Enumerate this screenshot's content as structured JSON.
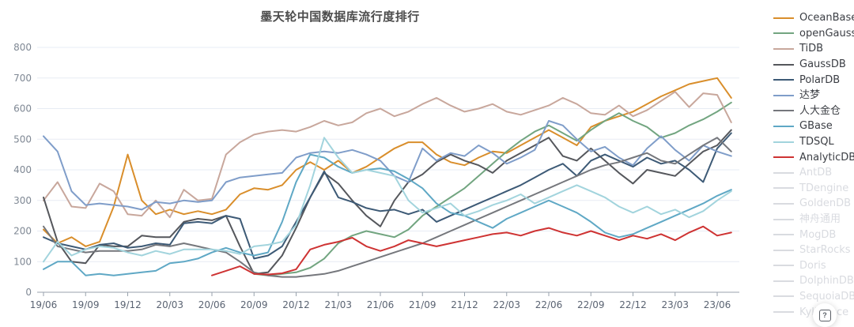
{
  "title": "墨天轮中国数据库流行度排行",
  "help_button": {
    "icon": "question-icon",
    "glyph": "?"
  },
  "colors": {
    "background": "#ffffff",
    "title": "#4c4c4c",
    "grid": "#e7ecf4",
    "axis_line": "#98a2ad",
    "y_label": "#7f8894",
    "x_label": "#5a6372",
    "disabled": "#d9dbe0"
  },
  "legend": {
    "items": [
      {
        "label": "OceanBase",
        "color": "#d98e2b",
        "active": true
      },
      {
        "label": "openGauss",
        "color": "#72a580",
        "active": true
      },
      {
        "label": "TiDB",
        "color": "#c8a79c",
        "active": true
      },
      {
        "label": "GaussDB",
        "color": "#55575c",
        "active": true
      },
      {
        "label": "PolarDB",
        "color": "#3d5a76",
        "active": true
      },
      {
        "label": "达梦",
        "color": "#7f9dc9",
        "active": true
      },
      {
        "label": "人大金仓",
        "color": "#75777c",
        "active": true
      },
      {
        "label": "GBase",
        "color": "#5fa8c5",
        "active": true
      },
      {
        "label": "TDSQL",
        "color": "#a2d4dd",
        "active": true
      },
      {
        "label": "AnalyticDB",
        "color": "#ce3333",
        "active": true
      },
      {
        "label": "AntDB",
        "color": "#d9dbe0",
        "active": false
      },
      {
        "label": "TDengine",
        "color": "#d9dbe0",
        "active": false
      },
      {
        "label": "GoldenDB",
        "color": "#d9dbe0",
        "active": false
      },
      {
        "label": "神舟通用",
        "color": "#d9dbe0",
        "active": false
      },
      {
        "label": "MogDB",
        "color": "#d9dbe0",
        "active": false
      },
      {
        "label": "StarRocks",
        "color": "#d9dbe0",
        "active": false
      },
      {
        "label": "Doris",
        "color": "#d9dbe0",
        "active": false
      },
      {
        "label": "DolphinDB",
        "color": "#d9dbe0",
        "active": false
      },
      {
        "label": "SequoiaDB",
        "color": "#d9dbe0",
        "active": false
      },
      {
        "label": "Kyligence",
        "color": "#d9dbe0",
        "active": false
      }
    ]
  },
  "chart_data": {
    "type": "line",
    "title": "墨天轮中国数据库流行度排行",
    "x_start": "19/06",
    "x_interval": "monthly",
    "points_per_series": 50,
    "x_tick_labels": [
      "19/06",
      "19/09",
      "19/12",
      "20/03",
      "20/06",
      "20/09",
      "20/12",
      "21/03",
      "21/06",
      "21/09",
      "21/12",
      "22/03",
      "22/06",
      "22/09",
      "22/12",
      "23/03",
      "23/06"
    ],
    "tick_every_n_points": 3,
    "y_ticks": [
      0,
      100,
      200,
      300,
      400,
      500,
      600,
      700,
      800
    ],
    "ylim": [
      0,
      800
    ],
    "grid": true,
    "legend_position": "right",
    "series": [
      {
        "name": "OceanBase",
        "color": "#d98e2b",
        "values": [
          205,
          160,
          180,
          150,
          165,
          280,
          450,
          300,
          255,
          270,
          255,
          265,
          255,
          270,
          320,
          340,
          335,
          350,
          400,
          425,
          400,
          430,
          390,
          410,
          440,
          470,
          490,
          490,
          450,
          425,
          415,
          440,
          460,
          455,
          480,
          505,
          530,
          505,
          480,
          540,
          560,
          575,
          590,
          615,
          640,
          660,
          680,
          690,
          700,
          635
        ]
      },
      {
        "name": "openGauss",
        "color": "#72a580",
        "values": [
          null,
          null,
          null,
          null,
          null,
          null,
          null,
          null,
          null,
          null,
          null,
          null,
          null,
          null,
          null,
          60,
          55,
          60,
          65,
          80,
          110,
          160,
          185,
          200,
          190,
          180,
          205,
          250,
          280,
          310,
          340,
          380,
          420,
          460,
          495,
          525,
          545,
          520,
          495,
          530,
          560,
          585,
          560,
          540,
          505,
          520,
          545,
          565,
          590,
          620
        ]
      },
      {
        "name": "TiDB",
        "color": "#c8a79c",
        "values": [
          300,
          360,
          280,
          275,
          355,
          330,
          255,
          250,
          300,
          245,
          335,
          300,
          305,
          450,
          490,
          515,
          525,
          530,
          525,
          540,
          560,
          545,
          555,
          585,
          600,
          575,
          590,
          615,
          635,
          610,
          590,
          600,
          615,
          590,
          580,
          595,
          610,
          635,
          615,
          585,
          580,
          610,
          575,
          595,
          625,
          655,
          605,
          650,
          645,
          555
        ]
      },
      {
        "name": "GaussDB",
        "color": "#55575c",
        "values": [
          310,
          165,
          100,
          95,
          155,
          150,
          150,
          185,
          180,
          180,
          230,
          240,
          235,
          250,
          150,
          60,
          65,
          120,
          210,
          310,
          390,
          355,
          300,
          250,
          215,
          300,
          360,
          385,
          425,
          450,
          430,
          415,
          390,
          430,
          455,
          480,
          505,
          445,
          430,
          470,
          430,
          390,
          355,
          400,
          390,
          380,
          420,
          460,
          480,
          530
        ]
      },
      {
        "name": "PolarDB",
        "color": "#3d5a76",
        "values": [
          180,
          160,
          150,
          140,
          155,
          160,
          145,
          150,
          160,
          155,
          225,
          230,
          225,
          250,
          240,
          110,
          120,
          150,
          230,
          310,
          395,
          310,
          295,
          275,
          265,
          270,
          255,
          270,
          230,
          250,
          270,
          290,
          310,
          330,
          350,
          375,
          400,
          420,
          380,
          430,
          450,
          430,
          410,
          440,
          420,
          430,
          400,
          360,
          470,
          520
        ]
      },
      {
        "name": "达梦",
        "color": "#7f9dc9",
        "values": [
          510,
          460,
          330,
          285,
          290,
          285,
          280,
          270,
          295,
          290,
          300,
          295,
          300,
          360,
          375,
          380,
          385,
          390,
          440,
          455,
          460,
          455,
          465,
          450,
          430,
          380,
          360,
          470,
          430,
          455,
          445,
          480,
          455,
          420,
          440,
          465,
          560,
          545,
          500,
          460,
          475,
          440,
          415,
          470,
          510,
          465,
          430,
          480,
          460,
          445
        ]
      },
      {
        "name": "人大金仓",
        "color": "#75777c",
        "values": [
          215,
          150,
          140,
          130,
          135,
          135,
          135,
          140,
          155,
          150,
          160,
          150,
          140,
          130,
          100,
          65,
          55,
          50,
          50,
          55,
          60,
          70,
          85,
          100,
          115,
          130,
          145,
          160,
          180,
          200,
          220,
          240,
          260,
          280,
          300,
          320,
          340,
          360,
          380,
          400,
          415,
          425,
          440,
          455,
          430,
          420,
          450,
          480,
          505,
          460
        ]
      },
      {
        "name": "GBase",
        "color": "#5fa8c5",
        "values": [
          75,
          100,
          100,
          55,
          60,
          55,
          60,
          65,
          70,
          95,
          100,
          110,
          130,
          145,
          130,
          120,
          130,
          230,
          360,
          450,
          440,
          410,
          390,
          400,
          405,
          395,
          370,
          340,
          290,
          260,
          250,
          230,
          210,
          240,
          260,
          280,
          300,
          280,
          260,
          230,
          195,
          180,
          190,
          210,
          230,
          250,
          270,
          290,
          315,
          335
        ]
      },
      {
        "name": "TDSQL",
        "color": "#a2d4dd",
        "values": [
          100,
          165,
          120,
          140,
          150,
          145,
          130,
          120,
          135,
          125,
          140,
          140,
          140,
          135,
          125,
          150,
          155,
          165,
          220,
          350,
          505,
          440,
          390,
          400,
          390,
          380,
          300,
          260,
          275,
          290,
          250,
          265,
          285,
          300,
          320,
          290,
          310,
          330,
          350,
          330,
          310,
          280,
          260,
          280,
          255,
          270,
          245,
          265,
          300,
          330
        ]
      },
      {
        "name": "AnalyticDB",
        "color": "#ce3333",
        "values": [
          null,
          null,
          null,
          null,
          null,
          null,
          null,
          null,
          null,
          null,
          null,
          null,
          55,
          70,
          85,
          60,
          58,
          62,
          75,
          140,
          155,
          165,
          178,
          150,
          135,
          150,
          170,
          160,
          150,
          160,
          170,
          180,
          190,
          195,
          185,
          200,
          210,
          195,
          185,
          200,
          185,
          170,
          185,
          175,
          190,
          170,
          195,
          215,
          185,
          195
        ]
      }
    ]
  }
}
